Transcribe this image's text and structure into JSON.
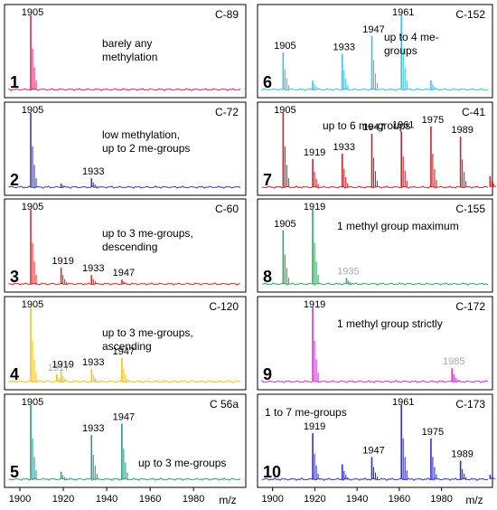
{
  "chart_data": [
    {
      "type": "line",
      "panel_number": "1",
      "code": "C-89",
      "description": "barely any methylation",
      "color": "#e0226e",
      "peak_labels": [
        {
          "x": 1905,
          "text": "1905",
          "gray": false
        }
      ],
      "peaks": [
        {
          "x": 1905,
          "y": 1.0
        }
      ]
    },
    {
      "type": "line",
      "panel_number": "2",
      "code": "C-72",
      "description": "low methylation, up to 2 me-groups",
      "color": "#3b3f9a",
      "peak_labels": [
        {
          "x": 1905,
          "text": "1905",
          "gray": false
        },
        {
          "x": 1933,
          "text": "1933",
          "gray": false
        }
      ],
      "peaks": [
        {
          "x": 1905,
          "y": 1.0
        },
        {
          "x": 1919,
          "y": 0.05
        },
        {
          "x": 1933,
          "y": 0.12
        }
      ]
    },
    {
      "type": "line",
      "panel_number": "3",
      "code": "C-60",
      "description": "up to 3 me-groups, descending",
      "color": "#e0262b",
      "peak_labels": [
        {
          "x": 1905,
          "text": "1905",
          "gray": false
        },
        {
          "x": 1919,
          "text": "1919",
          "gray": false
        },
        {
          "x": 1933,
          "text": "1933",
          "gray": false
        },
        {
          "x": 1947,
          "text": "1947",
          "gray": false
        }
      ],
      "peaks": [
        {
          "x": 1905,
          "y": 1.0
        },
        {
          "x": 1919,
          "y": 0.22
        },
        {
          "x": 1933,
          "y": 0.12
        },
        {
          "x": 1947,
          "y": 0.06
        }
      ]
    },
    {
      "type": "line",
      "panel_number": "4",
      "code": "C-120",
      "description": "up to 3 me-groups, ascending",
      "color": "#f2c21d",
      "peak_labels": [
        {
          "x": 1905,
          "text": "1905",
          "gray": false
        },
        {
          "x": 1917,
          "text": "1917",
          "gray": true
        },
        {
          "x": 1919,
          "text": "1919",
          "gray": false
        },
        {
          "x": 1933,
          "text": "1933",
          "gray": false
        },
        {
          "x": 1947,
          "text": "1947",
          "gray": false
        }
      ],
      "peaks": [
        {
          "x": 1905,
          "y": 1.0
        },
        {
          "x": 1917,
          "y": 0.1
        },
        {
          "x": 1919,
          "y": 0.14
        },
        {
          "x": 1933,
          "y": 0.17
        },
        {
          "x": 1947,
          "y": 0.32
        }
      ]
    },
    {
      "type": "line",
      "panel_number": "5",
      "code": "C 56a",
      "description": "up to 3 me-groups",
      "color": "#2a9a8e",
      "peak_labels": [
        {
          "x": 1905,
          "text": "1905",
          "gray": false
        },
        {
          "x": 1933,
          "text": "1933",
          "gray": false
        },
        {
          "x": 1947,
          "text": "1947",
          "gray": false
        }
      ],
      "peaks": [
        {
          "x": 1905,
          "y": 1.0
        },
        {
          "x": 1919,
          "y": 0.1
        },
        {
          "x": 1933,
          "y": 0.6
        },
        {
          "x": 1947,
          "y": 0.75
        }
      ]
    },
    {
      "type": "line",
      "panel_number": "6",
      "code": "C-152",
      "description": "up to 4 me-groups",
      "color": "#3fbfe6",
      "peak_labels": [
        {
          "x": 1905,
          "text": "1905",
          "gray": false
        },
        {
          "x": 1933,
          "text": "1933",
          "gray": false
        },
        {
          "x": 1947,
          "text": "1947",
          "gray": false
        },
        {
          "x": 1961,
          "text": "1961",
          "gray": false
        }
      ],
      "peaks": [
        {
          "x": 1905,
          "y": 0.5
        },
        {
          "x": 1919,
          "y": 0.12
        },
        {
          "x": 1933,
          "y": 0.48
        },
        {
          "x": 1947,
          "y": 0.72
        },
        {
          "x": 1961,
          "y": 1.0
        },
        {
          "x": 1975,
          "y": 0.12
        }
      ]
    },
    {
      "type": "line",
      "panel_number": "7",
      "code": "C-41",
      "description": "up to 6 me-groups",
      "color": "#c1272d",
      "peak_labels": [
        {
          "x": 1905,
          "text": "1905",
          "gray": false
        },
        {
          "x": 1919,
          "text": "1919",
          "gray": false
        },
        {
          "x": 1933,
          "text": "1933",
          "gray": false
        },
        {
          "x": 1947,
          "text": "1947",
          "gray": false
        },
        {
          "x": 1961,
          "text": "1961",
          "gray": false
        },
        {
          "x": 1975,
          "text": "1975",
          "gray": false
        },
        {
          "x": 1989,
          "text": "1989",
          "gray": false
        }
      ],
      "peaks": [
        {
          "x": 1905,
          "y": 1.0
        },
        {
          "x": 1919,
          "y": 0.38
        },
        {
          "x": 1933,
          "y": 0.45
        },
        {
          "x": 1947,
          "y": 0.72
        },
        {
          "x": 1961,
          "y": 0.75
        },
        {
          "x": 1975,
          "y": 0.82
        },
        {
          "x": 1989,
          "y": 0.68
        },
        {
          "x": 2003,
          "y": 0.15
        }
      ]
    },
    {
      "type": "line",
      "panel_number": "8",
      "code": "C-155",
      "description": "1 methyl group maximum",
      "color": "#2fa95a",
      "peak_labels": [
        {
          "x": 1905,
          "text": "1905",
          "gray": false
        },
        {
          "x": 1919,
          "text": "1919",
          "gray": false
        },
        {
          "x": 1935,
          "text": "1935",
          "gray": true
        }
      ],
      "peaks": [
        {
          "x": 1905,
          "y": 0.72
        },
        {
          "x": 1919,
          "y": 1.0
        },
        {
          "x": 1935,
          "y": 0.08
        }
      ]
    },
    {
      "type": "line",
      "panel_number": "9",
      "code": "C-172",
      "description": "1 methyl group strictly",
      "color": "#d42fd4",
      "peak_labels": [
        {
          "x": 1919,
          "text": "1919",
          "gray": false
        },
        {
          "x": 1985,
          "text": "1985",
          "gray": true
        }
      ],
      "peaks": [
        {
          "x": 1919,
          "y": 1.0
        },
        {
          "x": 1985,
          "y": 0.18
        }
      ]
    },
    {
      "type": "line",
      "panel_number": "10",
      "code": "C-173",
      "description": "1 to 7 me-groups",
      "color": "#2f2fd0",
      "peak_labels": [
        {
          "x": 1919,
          "text": "1919",
          "gray": false
        },
        {
          "x": 1947,
          "text": "1947",
          "gray": false
        },
        {
          "x": 1961,
          "text": "1961",
          "gray": false
        },
        {
          "x": 1975,
          "text": "1975",
          "gray": false
        },
        {
          "x": 1989,
          "text": "1989",
          "gray": false
        }
      ],
      "peaks": [
        {
          "x": 1919,
          "y": 0.62
        },
        {
          "x": 1933,
          "y": 0.2
        },
        {
          "x": 1947,
          "y": 0.3
        },
        {
          "x": 1961,
          "y": 1.0
        },
        {
          "x": 1975,
          "y": 0.55
        },
        {
          "x": 1989,
          "y": 0.25
        },
        {
          "x": 2003,
          "y": 0.06
        }
      ]
    }
  ],
  "axes": [
    {
      "ticks": [
        1900,
        1920,
        1940,
        1960,
        1980
      ],
      "xlabel": "m/z",
      "xlim": [
        1895,
        2002
      ]
    },
    {
      "ticks": [
        1900,
        1920,
        1940,
        1960,
        1980
      ],
      "xlabel": "m/z",
      "xlim": [
        1895,
        2002
      ]
    }
  ]
}
